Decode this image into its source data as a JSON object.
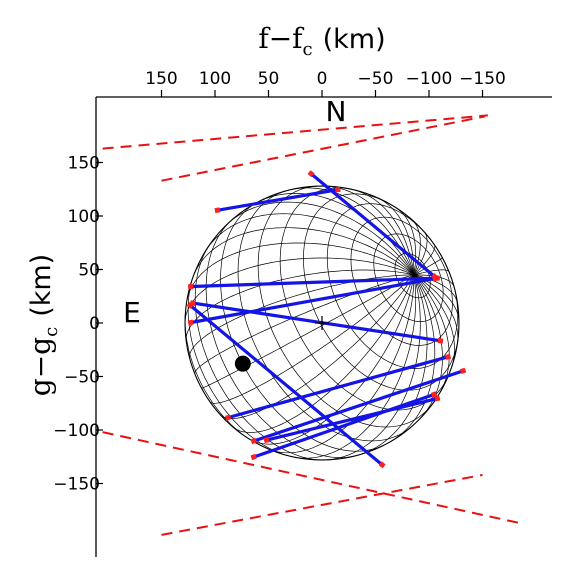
{
  "chart_data": {
    "type": "scatter",
    "title": "",
    "x_axis": {
      "symbol": "f",
      "symbol_sub": "c",
      "unit": "(km)",
      "placement": "top",
      "reversed": true,
      "ticks": [
        150,
        100,
        50,
        0,
        -50,
        -100,
        -150
      ],
      "tick_labels": [
        "150",
        "100",
        "50",
        "0",
        "−50",
        "−100",
        "−150"
      ]
    },
    "y_axis": {
      "symbol": "g",
      "symbol_sub": "c",
      "unit": "(km)",
      "ticks": [
        150,
        100,
        50,
        0,
        -50,
        -100,
        -150
      ],
      "tick_labels": [
        "150",
        "100",
        "50",
        "0",
        "−50",
        "−100",
        "−150"
      ]
    },
    "xlim": [
      205,
      -210
    ],
    "ylim": [
      -210,
      210
    ],
    "direction_labels": {
      "north": "N",
      "east": "E"
    },
    "body": {
      "type": "ellipsoid",
      "center": [
        0,
        0
      ],
      "radius_f": 128,
      "radius_g": 128,
      "pole_position": [
        -86,
        45
      ],
      "grid": true
    },
    "center_mark": [
      0,
      0
    ],
    "feature_dot": [
      74,
      -38
    ],
    "chords": [
      [
        [
          12,
          141
        ],
        [
          -107,
          42
        ]
      ],
      [
        [
          100,
          105
        ],
        [
          -17,
          125
        ]
      ],
      [
        [
          125,
          34
        ],
        [
          -110,
          42
        ]
      ],
      [
        [
          125,
          0
        ],
        [
          -108,
          42
        ]
      ],
      [
        [
          123,
          19
        ],
        [
          -113,
          -17
        ]
      ],
      [
        [
          125,
          18
        ],
        [
          -58,
          -134
        ]
      ],
      [
        [
          90,
          -89
        ],
        [
          -120,
          -31
        ]
      ],
      [
        [
          66,
          -111
        ],
        [
          -134,
          -44
        ]
      ],
      [
        [
          54,
          -110
        ],
        [
          -110,
          -70
        ]
      ],
      [
        [
          66,
          -126
        ],
        [
          -107,
          -66
        ]
      ]
    ],
    "limit_lines": [
      [
        [
          205,
          163
        ],
        [
          -155,
          194
        ]
      ],
      [
        [
          150,
          133
        ],
        [
          -152,
          193
        ]
      ],
      [
        [
          205,
          -102
        ],
        [
          -185,
          -187
        ]
      ],
      [
        [
          150,
          -198
        ],
        [
          -150,
          -142
        ]
      ]
    ],
    "colors": {
      "chords": "#1414e6",
      "chord_ends": "#ff2020",
      "limit_lines": "#e81010",
      "grid": "#000000"
    }
  }
}
